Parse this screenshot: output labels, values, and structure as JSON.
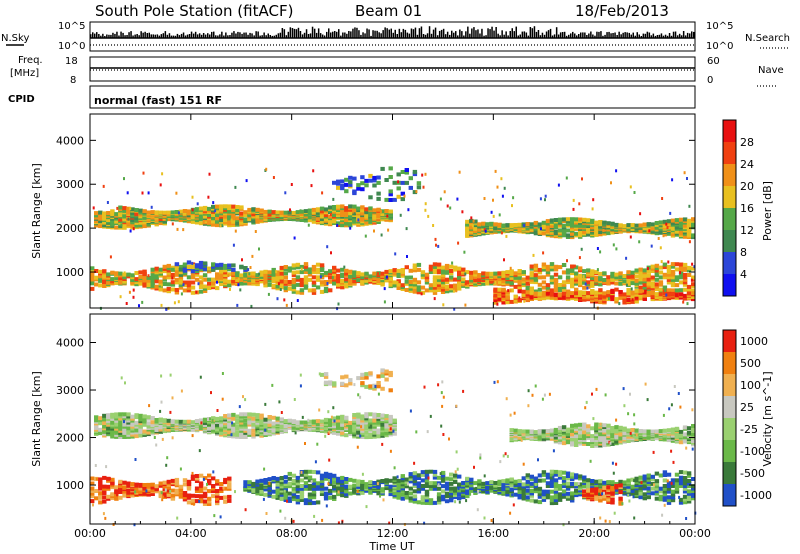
{
  "header": {
    "station": "South Pole Station (fitACF)",
    "beam": "Beam 01",
    "date": "18/Feb/2013"
  },
  "top_panels": {
    "nsky_label": "N.Sky",
    "nsky_ticks": [
      "10^5",
      "10^0"
    ],
    "nsearch_label": "N.Search",
    "freq_label_1": "Freq.",
    "freq_label_2": "[MHz]",
    "freq_ticks": [
      "18",
      "8"
    ],
    "nave_label": "Nave",
    "nave_ticks": [
      "60",
      "0"
    ],
    "cpid_label": "CPID",
    "cpid_text": "normal (fast) 151 RF"
  },
  "chart_data": [
    {
      "type": "heatmap",
      "name": "power",
      "ylabel": "Slant Range [km]",
      "yticks": [
        1000,
        2000,
        3000,
        4000
      ],
      "ylim": [
        180,
        4600
      ],
      "xlim": [
        0,
        24
      ],
      "xticks": [
        "00:00",
        "04:00",
        "08:00",
        "12:00",
        "16:00",
        "20:00",
        "00:00"
      ],
      "colorbar_label": "Power [dB]",
      "colorbar_ticks": [
        "28",
        "24",
        "20",
        "16",
        "12",
        "8",
        "4"
      ],
      "colorscale": [
        "#1010f0",
        "#2c46d8",
        "#3f8850",
        "#55a848",
        "#e8c020",
        "#f09018",
        "#f04010",
        "#e81010"
      ],
      "bands": [
        {
          "t0": 0.1,
          "t1": 3.0,
          "r": 2200,
          "w": 320,
          "fill": 0.7,
          "level": 0.5
        },
        {
          "t0": 1.0,
          "t1": 11.9,
          "r": 2280,
          "w": 360,
          "fill": 0.85,
          "level": 0.55
        },
        {
          "t0": 14.8,
          "t1": 24.0,
          "r": 2000,
          "w": 340,
          "fill": 0.8,
          "level": 0.5
        },
        {
          "t0": 0.0,
          "t1": 24.0,
          "r": 850,
          "w": 550,
          "fill": 0.6,
          "level": 0.6
        },
        {
          "t0": 3.2,
          "t1": 6.2,
          "r": 1100,
          "w": 300,
          "fill": 0.25,
          "level": 0.35
        },
        {
          "t0": 9.5,
          "t1": 13.0,
          "r": 3000,
          "w": 600,
          "fill": 0.25,
          "level": 0.3
        },
        {
          "t0": 16.0,
          "t1": 24.0,
          "r": 450,
          "w": 250,
          "fill": 0.5,
          "level": 0.75
        }
      ]
    },
    {
      "type": "heatmap",
      "name": "velocity",
      "ylabel": "Slant Range [km]",
      "yticks": [
        1000,
        2000,
        3000,
        4000
      ],
      "ylim": [
        180,
        4600
      ],
      "xlim": [
        0,
        24
      ],
      "xticks": [
        "00:00",
        "04:00",
        "08:00",
        "12:00",
        "16:00",
        "20:00",
        "00:00"
      ],
      "xlabel": "Time UT",
      "colorbar_label": "Velocity [m s^-1]",
      "colorbar_ticks": [
        "1000",
        "500",
        "100",
        "25",
        "-25",
        "-100",
        "-500",
        "-1000"
      ],
      "colorscale": [
        "#2050c8",
        "#3a7a3a",
        "#6ab848",
        "#9ad070",
        "#c8c8c0",
        "#f0b050",
        "#f08010",
        "#e82010"
      ],
      "bands": [
        {
          "t0": 0.1,
          "t1": 12.0,
          "r": 2250,
          "w": 400,
          "fill": 0.8,
          "level": 0.45
        },
        {
          "t0": 16.5,
          "t1": 24.0,
          "r": 2050,
          "w": 380,
          "fill": 0.75,
          "level": 0.45
        },
        {
          "t0": 0.0,
          "t1": 5.5,
          "r": 900,
          "w": 500,
          "fill": 0.55,
          "level": 0.85
        },
        {
          "t0": 6.0,
          "t1": 24.0,
          "r": 950,
          "w": 550,
          "fill": 0.65,
          "level": 0.2
        },
        {
          "t0": 9.0,
          "t1": 12.0,
          "r": 3200,
          "w": 500,
          "fill": 0.25,
          "level": 0.6
        },
        {
          "t0": 19.5,
          "t1": 21.0,
          "r": 800,
          "w": 350,
          "fill": 0.6,
          "level": 0.85
        }
      ]
    }
  ]
}
